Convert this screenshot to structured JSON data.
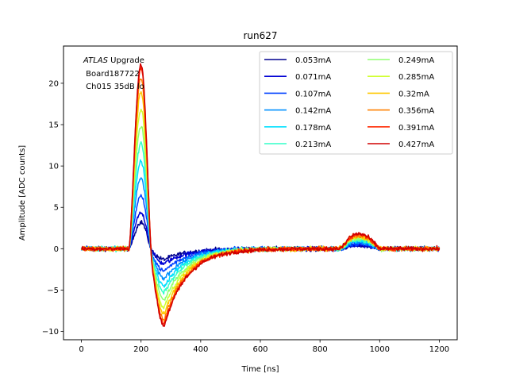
{
  "chart_data": {
    "type": "line",
    "title": "run627",
    "xlabel": "Time [ns]",
    "ylabel": "Amplitude [ADC counts]",
    "xlim": [
      -60,
      1260
    ],
    "ylim": [
      -11,
      24.5
    ],
    "xticks": [
      0,
      200,
      400,
      600,
      800,
      1000,
      1200
    ],
    "xtick_labels": [
      "0",
      "200",
      "400",
      "600",
      "800",
      "1000",
      "1200"
    ],
    "yticks": [
      -10,
      -5,
      0,
      5,
      10,
      15,
      20
    ],
    "ytick_labels": [
      "−10",
      "−5",
      "0",
      "5",
      "10",
      "15",
      "20"
    ],
    "grid": false,
    "legend_position": "top-right",
    "legend_columns": 2,
    "annotation": {
      "italic": "ATLAS",
      "rest": " Upgrade",
      "line2": " Board187722",
      "line3": " Ch015 35dB lo"
    },
    "series": [
      {
        "name": "0.053mA",
        "color": "#00008f",
        "peak": 3.2,
        "undershoot": -1.3,
        "bump": 0.35
      },
      {
        "name": "0.071mA",
        "color": "#0000d4",
        "peak": 4.3,
        "undershoot": -1.8,
        "bump": 0.45
      },
      {
        "name": "0.107mA",
        "color": "#0040ff",
        "peak": 6.4,
        "undershoot": -2.7,
        "bump": 0.6
      },
      {
        "name": "0.142mA",
        "color": "#0090ff",
        "peak": 8.5,
        "undershoot": -3.6,
        "bump": 0.8
      },
      {
        "name": "0.178mA",
        "color": "#00e0ff",
        "peak": 10.6,
        "undershoot": -4.5,
        "bump": 0.95
      },
      {
        "name": "0.213mA",
        "color": "#30ffc8",
        "peak": 12.7,
        "undershoot": -5.3,
        "bump": 1.1
      },
      {
        "name": "0.249mA",
        "color": "#90ff70",
        "peak": 14.8,
        "undershoot": -6.2,
        "bump": 1.25
      },
      {
        "name": "0.285mA",
        "color": "#d0ff30",
        "peak": 16.9,
        "undershoot": -7.1,
        "bump": 1.4
      },
      {
        "name": "0.32mA",
        "color": "#ffc800",
        "peak": 19.0,
        "undershoot": -7.9,
        "bump": 1.5
      },
      {
        "name": "0.356mA",
        "color": "#ff8000",
        "peak": 20.6,
        "undershoot": -8.6,
        "bump": 1.6
      },
      {
        "name": "0.391mA",
        "color": "#ff2800",
        "peak": 21.8,
        "undershoot": -9.0,
        "bump": 1.7
      },
      {
        "name": "0.427mA",
        "color": "#d00000",
        "peak": 22.3,
        "undershoot": -9.3,
        "bump": 1.8
      }
    ]
  }
}
